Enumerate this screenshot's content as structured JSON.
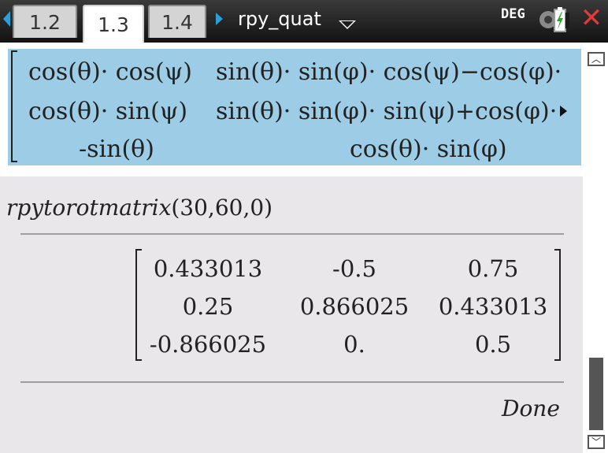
{
  "tabs": [
    {
      "label": "1.2",
      "active": false
    },
    {
      "label": "1.3",
      "active": true
    },
    {
      "label": "1.4",
      "active": false
    }
  ],
  "document_name": "rpy_quat",
  "angle_mode": "DEG",
  "previous_result": {
    "row1": {
      "c1": "cos(θ)· cos(ψ)",
      "c2": "sin(θ)· sin(φ)· cos(ψ)−cos(φ)·"
    },
    "row2": {
      "c1": "cos(θ)· sin(ψ)",
      "c2": "sin(θ)· sin(φ)· sin(ψ)+cos(φ)·"
    },
    "row3": {
      "c1": "-sin(θ)",
      "c2": "cos(θ)· sin(φ)"
    }
  },
  "command": {
    "name": "rpytorotmatrix",
    "args": "(30,60,0)"
  },
  "result_matrix": {
    "rows": [
      [
        "0.433013",
        "-0.5",
        "0.75"
      ],
      [
        "0.25",
        "0.866025",
        "0.433013"
      ],
      [
        "-0.866025",
        "0.",
        "0.5"
      ]
    ]
  },
  "last_output": "Done",
  "colors": {
    "selection_bg": "#9dcde6",
    "nav_arrow": "#2a9fd6",
    "close": "#e03a3a"
  },
  "icons": [
    "nav-left-icon",
    "nav-right-icon",
    "dropdown-caret-icon",
    "battery-icon",
    "close-icon",
    "scroll-up-icon",
    "scroll-down-icon",
    "expand-right-icon"
  ]
}
